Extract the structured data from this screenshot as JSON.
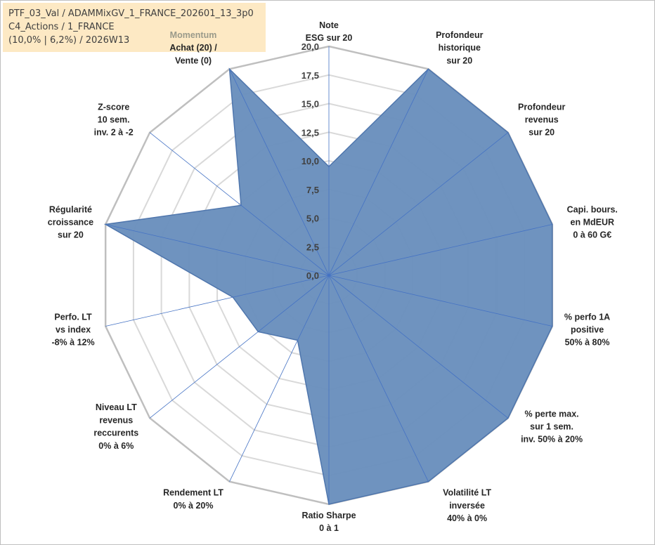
{
  "info_box": {
    "line1": "PTF_03_Val / ADAMMixGV_1_FRANCE_202601_13_3p0",
    "line2": "C4_Actions / 1_FRANCE",
    "line3": "(10,0% | 6,2%) / 2026W13"
  },
  "colors": {
    "fill": "#6a8fbd",
    "stroke": "#4f76ad",
    "grid": "#d9d9d9",
    "outer_grid": "#bfbfbf",
    "spoke": "#4472c4"
  },
  "chart_data": {
    "type": "radar",
    "ylim": [
      0,
      20
    ],
    "grid": true,
    "ticks": [
      "0,0",
      "2,5",
      "5,0",
      "7,5",
      "10,0",
      "12,5",
      "15,0",
      "17,5",
      "20,0"
    ],
    "axes": [
      {
        "lines": [
          "Note",
          "ESG sur 20"
        ]
      },
      {
        "lines": [
          "Profondeur",
          "historique",
          "sur 20"
        ]
      },
      {
        "lines": [
          "Profondeur",
          "revenus",
          "sur 20"
        ]
      },
      {
        "lines": [
          "Capi. bours.",
          "en MdEUR",
          "0 à 60 G€"
        ]
      },
      {
        "lines": [
          "% perfo 1A",
          "positive",
          "50% à 80%"
        ]
      },
      {
        "lines": [
          "% perte max.",
          "sur 1 sem.",
          "inv. 50% à 20%"
        ]
      },
      {
        "lines": [
          "Volatilité LT",
          "inversée",
          "40% à 0%"
        ]
      },
      {
        "lines": [
          "Ratio Sharpe",
          "0 à 1"
        ]
      },
      {
        "lines": [
          "Rendement LT",
          "0% à 20%"
        ]
      },
      {
        "lines": [
          "Niveau LT",
          "revenus",
          "reccurents",
          "0% à 6%"
        ]
      },
      {
        "lines": [
          "Perfo. LT",
          "vs index",
          "-8% à 12%"
        ]
      },
      {
        "lines": [
          "Régularité",
          "croissance",
          "sur 20"
        ]
      },
      {
        "lines": [
          "Z-score",
          "10 sem.",
          "inv. 2 à -2"
        ]
      },
      {
        "lines": [
          "Momentum",
          "Achat (20) /",
          "Vente (0)"
        ],
        "muted_first_line": true
      }
    ],
    "values": [
      9.5,
      20,
      20,
      20,
      20,
      20,
      20,
      20,
      6.3,
      7.9,
      8.6,
      20,
      9.8,
      20
    ]
  }
}
